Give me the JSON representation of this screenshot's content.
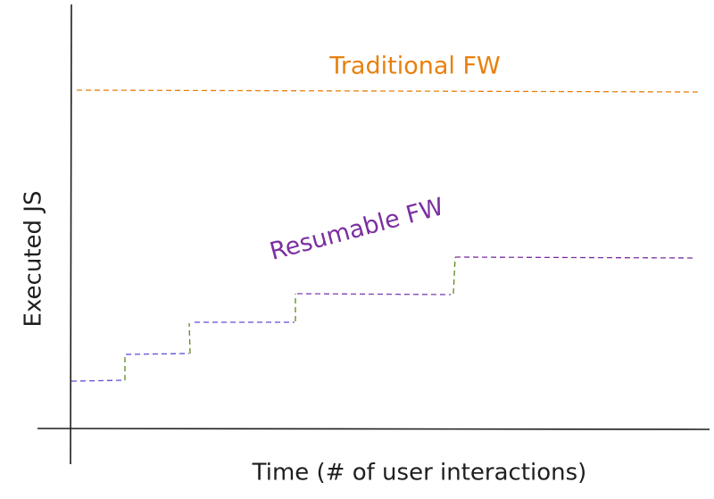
{
  "diagram": {
    "traditional_label": "Traditional FW",
    "resumable_label": "Resumable FW",
    "y_axis_label": "Executed JS",
    "x_axis_label": "Time (# of user interactions)"
  }
}
